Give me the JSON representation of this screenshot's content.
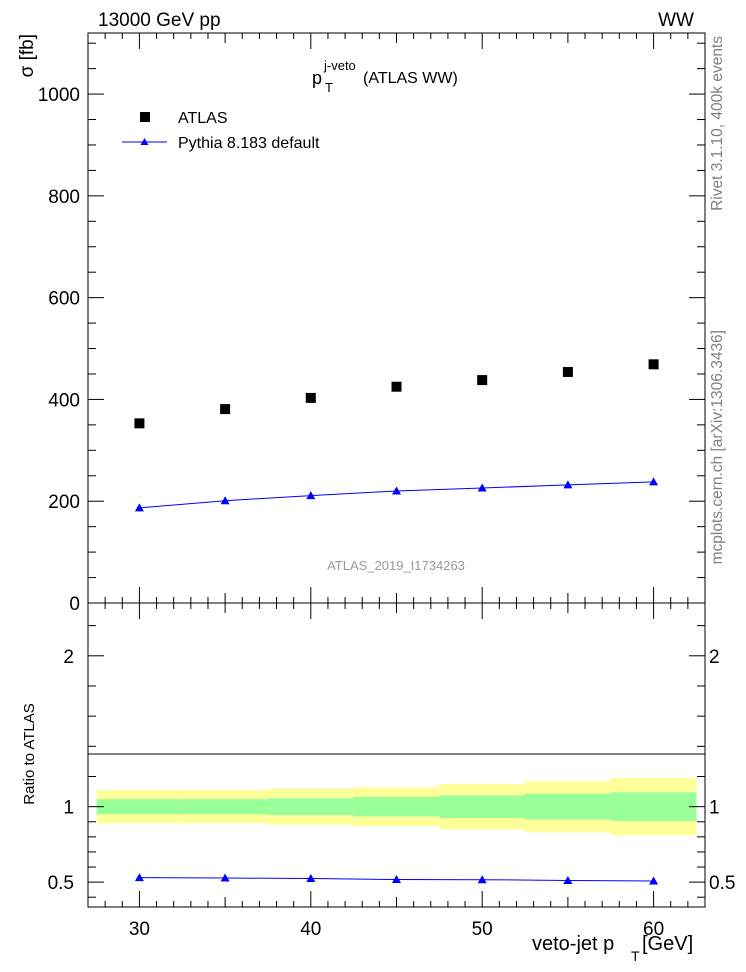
{
  "header": {
    "left": "13000 GeV pp",
    "right": "WW"
  },
  "side_text": {
    "rivet": "Rivet 3.1.10,  400k events",
    "mcplots": "mcplots.cern.ch [arXiv:1306.3436]"
  },
  "chart_data": [
    {
      "type": "scatter",
      "title": {
        "main": "p",
        "sub": "T",
        "sup": "j-veto",
        "rest": " (ATLAS WW)"
      },
      "watermark": "ATLAS_2019_I1734263",
      "ylabel": "σ [fb]",
      "xlim": [
        27,
        63
      ],
      "ylim": [
        0,
        1120
      ],
      "yticks": [
        0,
        200,
        400,
        600,
        800,
        1000
      ],
      "legend_position": "top-left",
      "series": [
        {
          "name": "ATLAS",
          "marker": "square",
          "color": "#000000",
          "x": [
            30,
            35,
            40,
            45,
            50,
            55,
            60
          ],
          "y": [
            353,
            381,
            403,
            425,
            438,
            454,
            469
          ]
        },
        {
          "name": "Pythia 8.183 default",
          "marker": "triangle",
          "color": "#0000ff",
          "x": [
            30,
            35,
            40,
            45,
            50,
            55,
            60
          ],
          "y": [
            187,
            201,
            211,
            220,
            226,
            232,
            238
          ]
        }
      ]
    },
    {
      "type": "line",
      "ylabel": "Ratio to ATLAS",
      "xlabel": {
        "main": "veto-jet p",
        "sub": "T",
        "rest": " [GeV]"
      },
      "xlim": [
        27,
        63
      ],
      "ylim": [
        0.335,
        2.35
      ],
      "xticks": [
        30,
        40,
        50,
        60
      ],
      "yticks": [
        0.5,
        1,
        2
      ],
      "bands": {
        "bin_edges": [
          27.5,
          32.5,
          37.5,
          42.5,
          47.5,
          52.5,
          57.5,
          62.5
        ],
        "yellow": [
          [
            0.89,
            1.11
          ],
          [
            0.89,
            1.11
          ],
          [
            0.88,
            1.12
          ],
          [
            0.87,
            1.13
          ],
          [
            0.85,
            1.15
          ],
          [
            0.83,
            1.17
          ],
          [
            0.81,
            1.19
          ]
        ],
        "green": [
          [
            0.95,
            1.05
          ],
          [
            0.95,
            1.05
          ],
          [
            0.945,
            1.055
          ],
          [
            0.935,
            1.065
          ],
          [
            0.925,
            1.075
          ],
          [
            0.915,
            1.085
          ],
          [
            0.905,
            1.095
          ]
        ],
        "yellow_color": "#ffff99",
        "green_color": "#99ff99"
      },
      "series": [
        {
          "name": "Pythia 8.183 default",
          "marker": "triangle",
          "color": "#0000ff",
          "x": [
            30,
            35,
            40,
            45,
            50,
            55,
            60
          ],
          "y": [
            0.53,
            0.527,
            0.524,
            0.517,
            0.516,
            0.511,
            0.507
          ]
        }
      ]
    }
  ]
}
